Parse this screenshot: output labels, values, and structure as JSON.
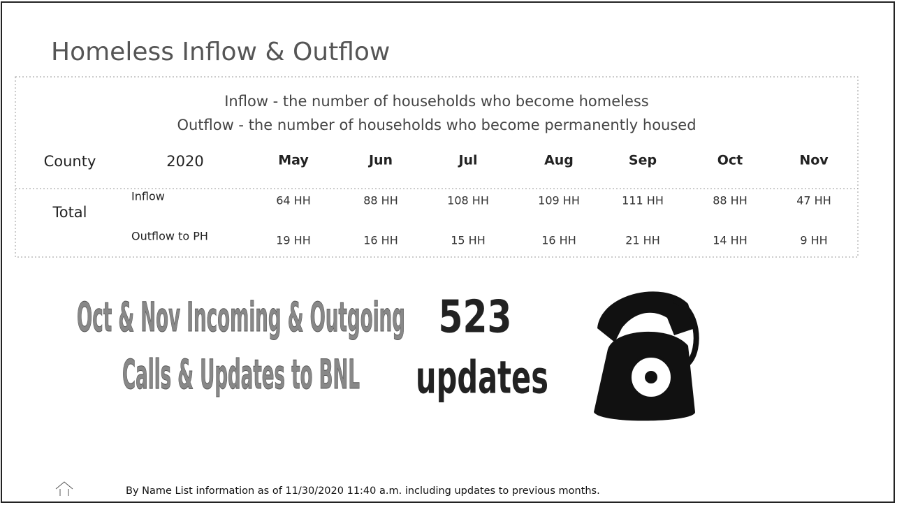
{
  "header": {
    "title": "Homeless Inflow & Outflow"
  },
  "definitions": [
    "Inflow - the number of households who become homeless",
    "Outflow - the number of households who become permanently housed"
  ],
  "table": {
    "columns": [
      "County",
      "2020",
      "May",
      "Jun",
      "Jul",
      "Aug",
      "Sep",
      "Oct",
      "Nov"
    ],
    "group": "Total",
    "rows": [
      {
        "label": "Inflow",
        "cells": [
          "64 HH",
          "88 HH",
          "108 HH",
          "109 HH",
          "111 HH",
          "88 HH",
          "47 HH"
        ]
      },
      {
        "label": "Outflow to PH",
        "cells": [
          "19 HH",
          "16 HH",
          "15 HH",
          "16 HH",
          "21 HH",
          "14 HH",
          "9 HH"
        ]
      }
    ]
  },
  "callout": {
    "lines": [
      "Oct & Nov Incoming & Outgoing",
      "Calls & Updates to BNL"
    ],
    "count": "523",
    "unit": "updates"
  },
  "footer": {
    "note": "By Name List information as of 11/30/2020 11:40 a.m. including updates to previous months."
  }
}
